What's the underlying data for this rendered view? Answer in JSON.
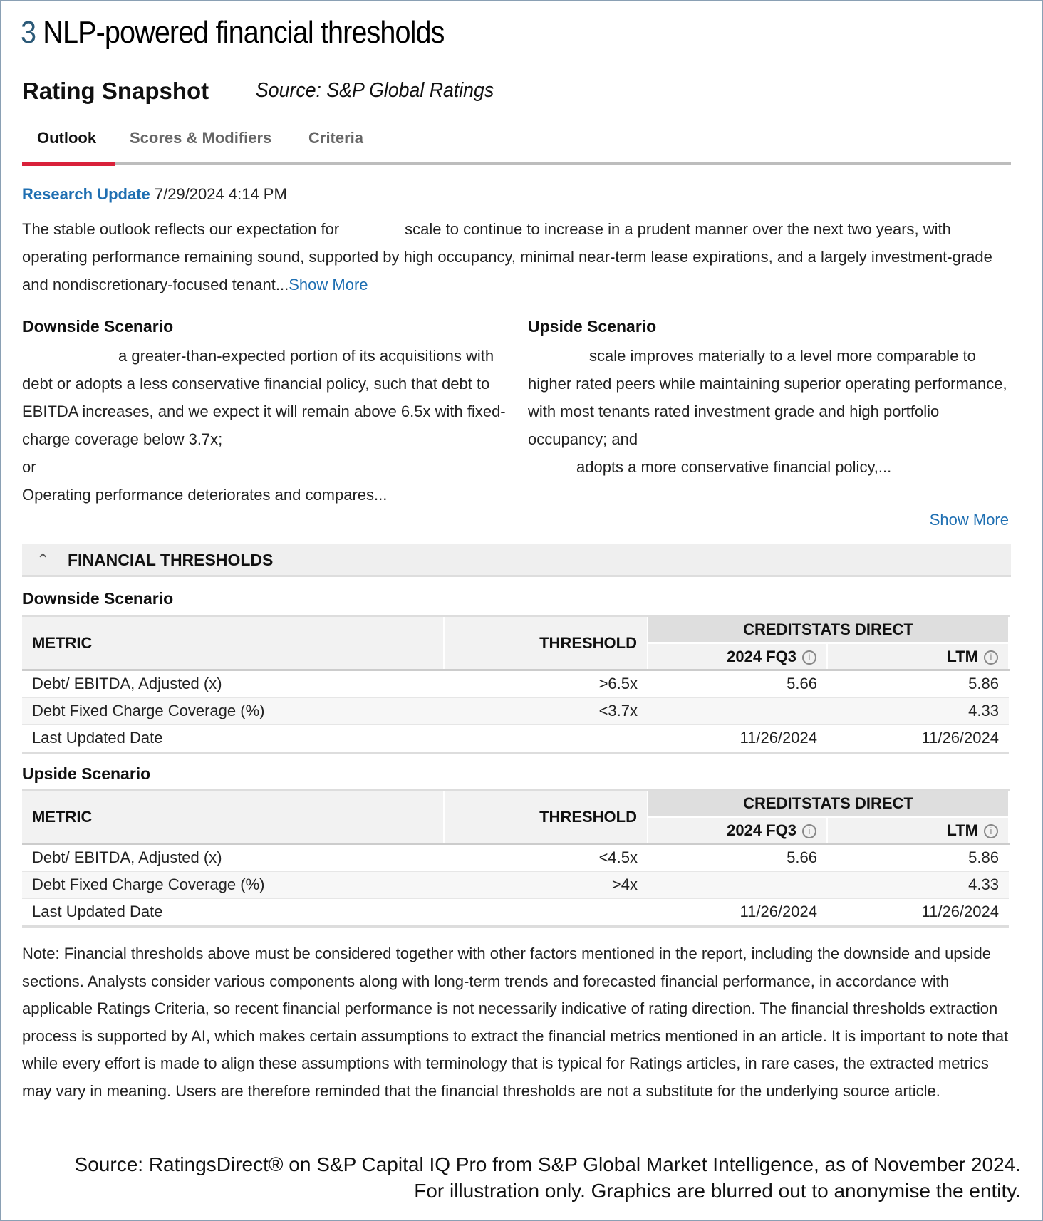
{
  "figure_title": {
    "number": "3",
    "text": "NLP-powered financial thresholds"
  },
  "header": {
    "title": "Rating Snapshot",
    "source": "Source: S&P Global Ratings"
  },
  "tabs": [
    {
      "label": "Outlook",
      "active": true
    },
    {
      "label": "Scores & Modifiers",
      "active": false
    },
    {
      "label": "Criteria",
      "active": false
    }
  ],
  "research": {
    "link": "Research Update",
    "datetime": "7/29/2024 4:14 PM"
  },
  "outlook": {
    "part1": "The stable outlook reflects our expectation for",
    "part2": "scale to continue to increase in a prudent manner over the next two years, with operating performance remaining sound, supported by high occupancy, minimal near-term lease expirations, and a largely investment-grade and nondiscretionary-focused tenant...",
    "show_more": "Show More"
  },
  "downside": {
    "heading": "Downside Scenario",
    "text": "a greater-than-expected portion of its acquisitions with debt or adopts a less conservative financial policy, such that debt to EBITDA increases, and we expect it will remain above 6.5x with fixed-charge coverage below 3.7x;",
    "or": "or",
    "text2": "Operating performance deteriorates and compares..."
  },
  "upside": {
    "heading": "Upside Scenario",
    "text": "scale improves materially to a level more comparable to higher rated peers while maintaining superior operating performance, with most tenants rated investment grade and high portfolio occupancy; and",
    "text2": "adopts a more conservative financial policy,..."
  },
  "show_more": "Show More",
  "thresholds": {
    "title": "FINANCIAL THRESHOLDS",
    "headers": {
      "metric": "METRIC",
      "threshold": "THRESHOLD",
      "group": "CREDITSTATS DIRECT",
      "fq3": "2024 FQ3",
      "ltm": "LTM"
    },
    "downside": {
      "heading": "Downside Scenario",
      "rows": [
        {
          "metric": "Debt/ EBITDA, Adjusted (x)",
          "threshold": ">6.5x",
          "fq3": "5.66",
          "ltm": "5.86"
        },
        {
          "metric": "Debt Fixed Charge Coverage (%)",
          "threshold": "<3.7x",
          "fq3": "",
          "ltm": "4.33"
        },
        {
          "metric": "Last Updated Date",
          "threshold": "",
          "fq3": "11/26/2024",
          "ltm": "11/26/2024"
        }
      ]
    },
    "upside": {
      "heading": "Upside Scenario",
      "rows": [
        {
          "metric": "Debt/ EBITDA, Adjusted (x)",
          "threshold": "<4.5x",
          "fq3": "5.66",
          "ltm": "5.86"
        },
        {
          "metric": "Debt Fixed Charge Coverage (%)",
          "threshold": ">4x",
          "fq3": "",
          "ltm": "4.33"
        },
        {
          "metric": "Last Updated Date",
          "threshold": "",
          "fq3": "11/26/2024",
          "ltm": "11/26/2024"
        }
      ]
    }
  },
  "note": "Note: Financial thresholds above must be considered together with other factors mentioned in the report, including the downside and upside sections. Analysts consider various components along with long-term trends and forecasted financial performance, in accordance with applicable Ratings Criteria, so recent financial performance is not necessarily indicative of rating direction. The financial thresholds extraction process is supported by AI, which makes certain assumptions to extract the financial metrics mentioned in an article. It is important to note that while every effort is made to align these assumptions with terminology that is typical for Ratings articles, in rare cases, the extracted metrics may vary in meaning. Users are therefore reminded that the financial thresholds are not a substitute for the underlying source article.",
  "footer": {
    "line1": "Source: RatingsDirect® on S&P Capital IQ Pro from S&P Global Market Intelligence, as of November 2024.",
    "line2": "For illustration only. Graphics are blurred out to anonymise the entity."
  }
}
